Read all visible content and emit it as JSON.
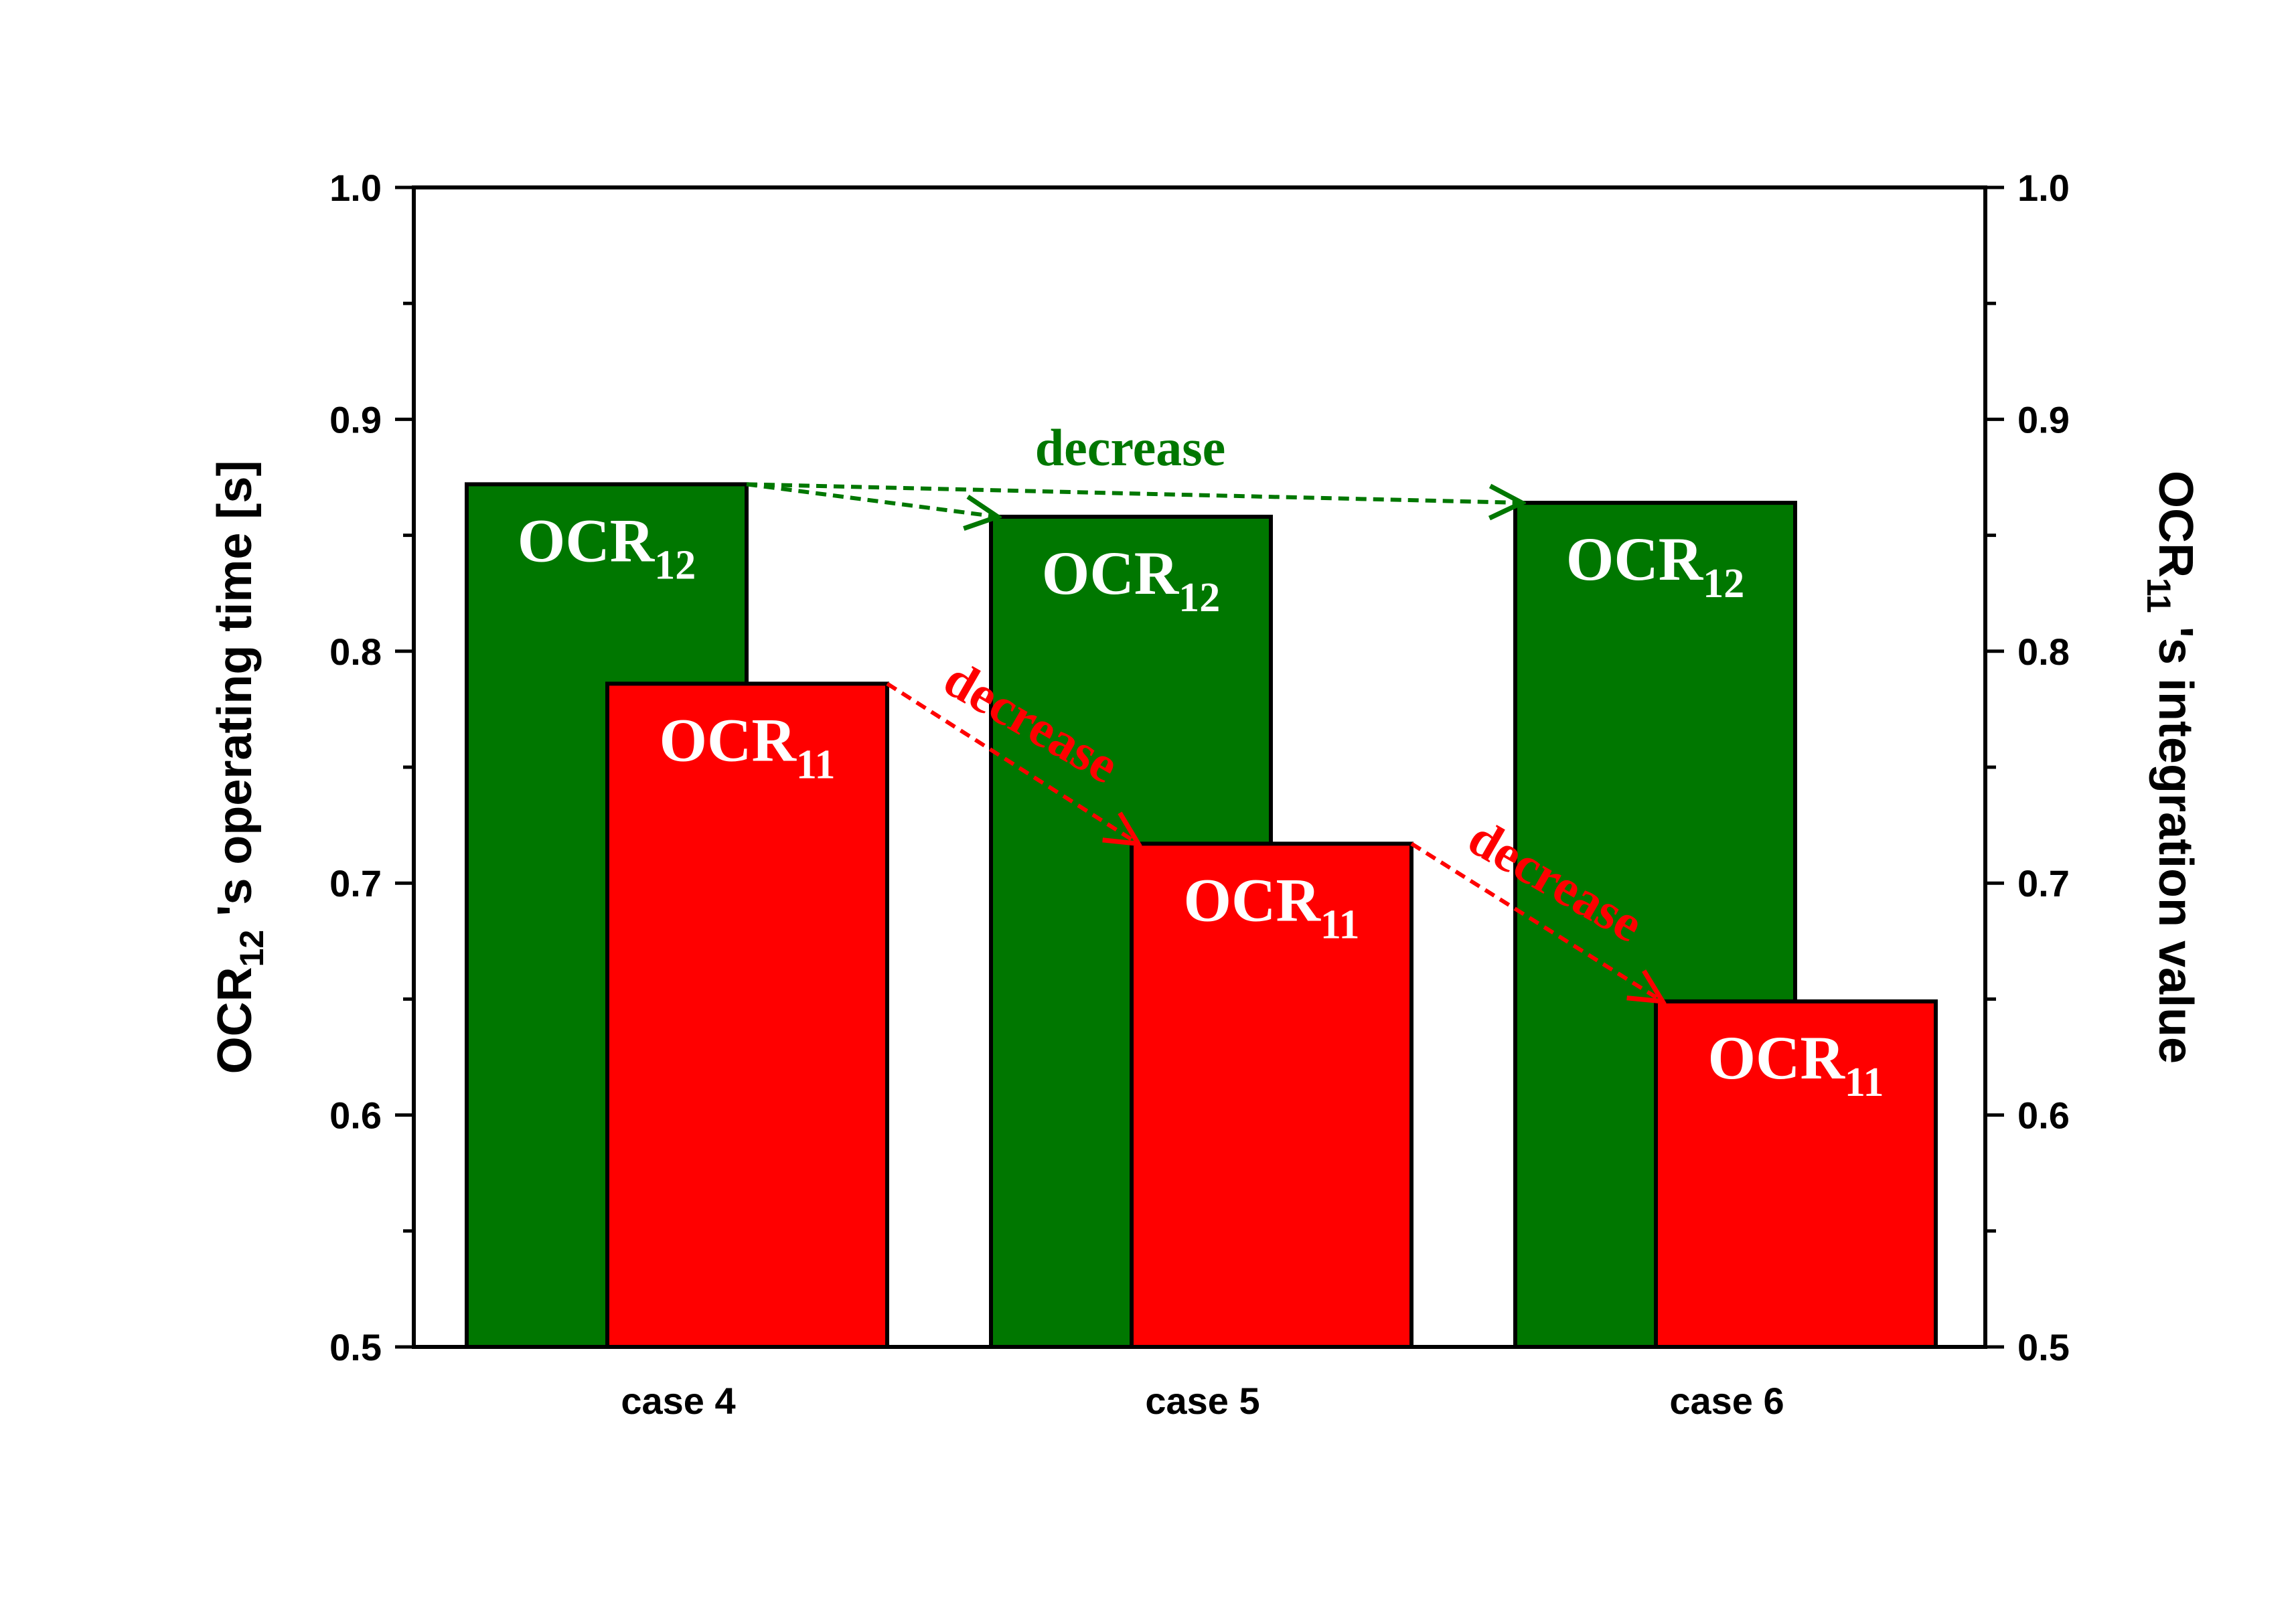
{
  "chart_data": {
    "type": "bar",
    "categories": [
      "case 4",
      "case 5",
      "case 6"
    ],
    "series": [
      {
        "name": "OCR12",
        "label_main": "OCR",
        "label_sub": "12",
        "axis": "left",
        "color": "#007700",
        "values": [
          0.872,
          0.858,
          0.864
        ]
      },
      {
        "name": "OCR11",
        "label_main": "OCR",
        "label_sub": "11",
        "axis": "right",
        "color": "#ff0000",
        "values": [
          0.786,
          0.717,
          0.649
        ]
      }
    ],
    "ylim": [
      0.5,
      1.0
    ],
    "y2lim": [
      0.5,
      1.0
    ],
    "yticks": [
      "0.5",
      "0.6",
      "0.7",
      "0.8",
      "0.9",
      "1.0"
    ],
    "y2ticks": [
      "0.5",
      "0.6",
      "0.7",
      "0.8",
      "0.9",
      "1.0"
    ],
    "ylabel": {
      "pre": "OCR",
      "sub": "12",
      "post": " 's operating time [s]"
    },
    "y2label": {
      "pre": "OCR",
      "sub": "11",
      "post": " 's integration value"
    },
    "annotations": [
      {
        "text": "decrease",
        "color": "#007700"
      },
      {
        "text": "decrease",
        "color": "#ff0000"
      },
      {
        "text": "decrease",
        "color": "#ff0000"
      }
    ]
  }
}
